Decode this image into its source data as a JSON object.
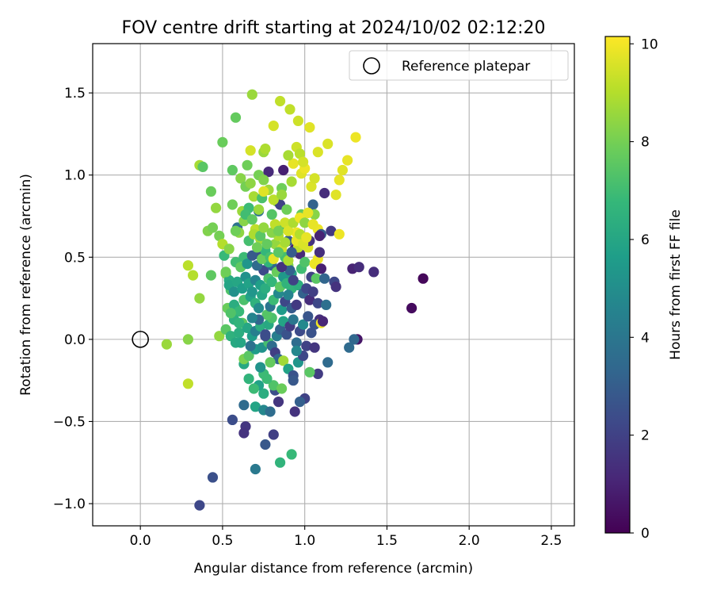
{
  "chart_data": {
    "type": "scatter",
    "title": "FOV centre drift starting at 2024/10/02 02:12:20",
    "xlabel": "Angular distance from reference (arcmin)",
    "ylabel": "Rotation from reference (arcmin)",
    "xlim": [
      -0.29,
      2.64
    ],
    "ylim": [
      -1.135,
      1.8
    ],
    "x_ticks": [
      0.0,
      0.5,
      1.0,
      1.5,
      2.0,
      2.5
    ],
    "x_tick_labels": [
      "0.0",
      "0.5",
      "1.0",
      "1.5",
      "2.0",
      "2.5"
    ],
    "y_ticks": [
      -1.0,
      -0.5,
      0.0,
      0.5,
      1.0,
      1.5
    ],
    "y_tick_labels": [
      "−1.0",
      "−0.5",
      "0.0",
      "0.5",
      "1.0",
      "1.5"
    ],
    "grid": true,
    "legend_position": "top-right",
    "legend": [
      {
        "label": "Reference platepar",
        "marker": "open-circle",
        "x": 0.0,
        "y": 0.0
      }
    ],
    "colorbar": {
      "label": "Hours from first FF file",
      "range": [
        0,
        10.15
      ],
      "ticks": [
        0,
        2,
        4,
        6,
        8,
        10
      ],
      "tick_labels": [
        "0",
        "2",
        "4",
        "6",
        "8",
        "10"
      ],
      "colormap": "viridis"
    },
    "colormap_stops": [
      "#440154",
      "#482878",
      "#3e4989",
      "#31688e",
      "#26828e",
      "#1f9e89",
      "#35b779",
      "#6ece58",
      "#b5de2b",
      "#fde725"
    ],
    "points": [
      [
        0.16,
        -0.03,
        8.6
      ],
      [
        0.29,
        -0.27,
        9.2
      ],
      [
        0.29,
        0.0,
        8.3
      ],
      [
        0.29,
        0.45,
        9.1
      ],
      [
        0.32,
        0.39,
        9.0
      ],
      [
        0.36,
        0.25,
        8.5
      ],
      [
        0.36,
        1.06,
        8.8
      ],
      [
        0.38,
        1.05,
        7.5
      ],
      [
        0.41,
        0.66,
        8.2
      ],
      [
        0.43,
        0.9,
        7.8
      ],
      [
        0.43,
        0.39,
        7.6
      ],
      [
        0.44,
        0.68,
        8.0
      ],
      [
        0.46,
        0.8,
        8.5
      ],
      [
        0.48,
        0.63,
        8.0
      ],
      [
        0.5,
        0.58,
        9.0
      ],
      [
        0.51,
        0.51,
        6.8
      ],
      [
        0.5,
        1.2,
        7.8
      ],
      [
        0.52,
        0.4,
        8.2
      ],
      [
        0.54,
        0.36,
        6.2
      ],
      [
        0.55,
        0.3,
        7.3
      ],
      [
        0.56,
        0.82,
        7.9
      ],
      [
        0.56,
        1.03,
        7.6
      ],
      [
        0.58,
        1.35,
        7.7
      ],
      [
        0.58,
        0.19,
        7.2
      ],
      [
        0.59,
        0.68,
        3.8
      ],
      [
        0.6,
        0.65,
        8.4
      ],
      [
        0.62,
        0.78,
        8.6
      ],
      [
        0.63,
        0.72,
        8.3
      ],
      [
        0.65,
        1.06,
        7.9
      ],
      [
        0.66,
        0.8,
        6.9
      ],
      [
        0.67,
        1.15,
        9.5
      ],
      [
        0.68,
        1.49,
        8.6
      ],
      [
        0.69,
        0.87,
        8.8
      ],
      [
        0.7,
        0.67,
        9.2
      ],
      [
        0.71,
        0.52,
        2.5
      ],
      [
        0.72,
        0.78,
        3.8
      ],
      [
        0.72,
        1.0,
        8.0
      ],
      [
        0.73,
        0.61,
        8.7
      ],
      [
        0.75,
        1.14,
        8.6
      ],
      [
        0.76,
        1.16,
        8.9
      ],
      [
        0.78,
        1.02,
        1.2
      ],
      [
        0.8,
        0.76,
        7.4
      ],
      [
        0.81,
        1.3,
        9.5
      ],
      [
        0.83,
        0.84,
        8.2
      ],
      [
        0.85,
        1.45,
        9.2
      ],
      [
        0.85,
        0.82,
        2.0
      ],
      [
        0.86,
        0.92,
        7.9
      ],
      [
        0.87,
        1.03,
        0.9
      ],
      [
        0.88,
        0.69,
        6.5
      ],
      [
        0.9,
        0.6,
        2.9
      ],
      [
        0.91,
        1.4,
        9.2
      ],
      [
        0.92,
        0.96,
        8.8
      ],
      [
        0.93,
        1.07,
        9.8
      ],
      [
        0.95,
        1.17,
        9.4
      ],
      [
        0.96,
        1.33,
        9.4
      ],
      [
        0.98,
        1.01,
        9.7
      ],
      [
        0.98,
        0.76,
        7.7
      ],
      [
        1.0,
        1.04,
        9.9
      ],
      [
        1.03,
        1.29,
        9.7
      ],
      [
        1.04,
        0.93,
        9.6
      ],
      [
        1.05,
        0.82,
        3.2
      ],
      [
        1.06,
        0.98,
        9.5
      ],
      [
        1.08,
        0.67,
        9.9
      ],
      [
        1.08,
        1.14,
        9.6
      ],
      [
        1.1,
        0.64,
        2.9
      ],
      [
        1.12,
        0.89,
        1.3
      ],
      [
        1.14,
        1.19,
        9.6
      ],
      [
        1.16,
        0.66,
        1.7
      ],
      [
        1.19,
        0.88,
        9.7
      ],
      [
        1.21,
        0.64,
        9.9
      ],
      [
        1.21,
        0.97,
        9.8
      ],
      [
        1.23,
        1.03,
        9.7
      ],
      [
        1.26,
        1.09,
        9.8
      ],
      [
        1.31,
        1.23,
        9.9
      ],
      [
        1.06,
        0.76,
        8.3
      ],
      [
        0.75,
        0.42,
        2.3
      ],
      [
        0.8,
        0.45,
        3.3
      ],
      [
        0.78,
        0.47,
        6.6
      ],
      [
        0.82,
        0.58,
        8.5
      ],
      [
        0.84,
        0.63,
        8.9
      ],
      [
        0.86,
        0.55,
        9.4
      ],
      [
        0.88,
        0.5,
        7.1
      ],
      [
        0.9,
        0.45,
        8.1
      ],
      [
        0.92,
        0.4,
        5.9
      ],
      [
        0.94,
        0.55,
        0.9
      ],
      [
        0.95,
        0.65,
        9.9
      ],
      [
        0.97,
        0.52,
        1.2
      ],
      [
        0.98,
        0.43,
        7.0
      ],
      [
        1.0,
        0.47,
        7.3
      ],
      [
        1.02,
        0.56,
        9.6
      ],
      [
        1.03,
        0.6,
        1.5
      ],
      [
        1.04,
        0.38,
        2.0
      ],
      [
        1.06,
        0.46,
        9.9
      ],
      [
        1.07,
        0.37,
        7.5
      ],
      [
        1.08,
        0.49,
        9.9
      ],
      [
        1.09,
        0.63,
        1.0
      ],
      [
        1.1,
        0.43,
        0.9
      ],
      [
        1.12,
        0.37,
        3.3
      ],
      [
        1.09,
        0.53,
        1.4
      ],
      [
        0.96,
        0.56,
        9.2
      ],
      [
        1.18,
        0.35,
        2.2
      ],
      [
        1.19,
        0.32,
        1.5
      ],
      [
        1.29,
        0.43,
        1.0
      ],
      [
        1.33,
        0.44,
        1.3
      ],
      [
        1.42,
        0.41,
        1.3
      ],
      [
        1.72,
        0.37,
        0.2
      ],
      [
        1.65,
        0.19,
        0.3
      ],
      [
        0.88,
        0.34,
        7.7
      ],
      [
        0.92,
        0.31,
        6.6
      ],
      [
        0.96,
        0.33,
        6.4
      ],
      [
        0.99,
        0.28,
        3.2
      ],
      [
        1.01,
        0.31,
        2.2
      ],
      [
        1.03,
        0.24,
        1.3
      ],
      [
        1.05,
        0.29,
        1.9
      ],
      [
        1.08,
        0.22,
        2.2
      ],
      [
        1.13,
        0.21,
        3.7
      ],
      [
        1.09,
        0.12,
        1.4
      ],
      [
        1.06,
        0.09,
        2.6
      ],
      [
        1.1,
        0.1,
        9.9
      ],
      [
        1.11,
        0.11,
        1.1
      ],
      [
        1.32,
        0.0,
        0.6
      ],
      [
        1.3,
        0.0,
        3.4
      ],
      [
        1.27,
        -0.05,
        3.5
      ],
      [
        1.14,
        -0.14,
        3.5
      ],
      [
        1.08,
        -0.21,
        1.8
      ],
      [
        1.03,
        -0.2,
        7.5
      ],
      [
        1.0,
        -0.36,
        2.0
      ],
      [
        0.97,
        -0.38,
        3.1
      ],
      [
        0.94,
        -0.44,
        1.5
      ],
      [
        0.92,
        -0.7,
        6.8
      ],
      [
        0.85,
        -0.75,
        6.6
      ],
      [
        0.81,
        -0.58,
        1.9
      ],
      [
        0.76,
        -0.64,
        2.8
      ],
      [
        0.7,
        -0.79,
        4.1
      ],
      [
        0.64,
        -0.53,
        1.6
      ],
      [
        0.63,
        -0.57,
        1.5
      ],
      [
        0.56,
        -0.49,
        2.4
      ],
      [
        0.44,
        -0.84,
        2.5
      ],
      [
        0.36,
        -1.01,
        2.2
      ],
      [
        0.63,
        -0.4,
        3.5
      ],
      [
        0.7,
        -0.41,
        5.9
      ],
      [
        0.75,
        -0.43,
        4.7
      ],
      [
        0.79,
        -0.44,
        3.6
      ],
      [
        0.84,
        -0.38,
        1.6
      ],
      [
        0.82,
        -0.31,
        2.4
      ],
      [
        0.81,
        -0.28,
        7.3
      ],
      [
        0.77,
        -0.24,
        6.9
      ],
      [
        0.75,
        -0.33,
        6.3
      ],
      [
        0.75,
        -0.21,
        6.9
      ],
      [
        0.72,
        -0.28,
        5.8
      ],
      [
        0.69,
        -0.3,
        6.9
      ],
      [
        0.66,
        -0.24,
        6.6
      ],
      [
        0.63,
        -0.15,
        6.1
      ],
      [
        0.63,
        -0.12,
        8.1
      ],
      [
        0.66,
        -0.1,
        7.5
      ],
      [
        0.7,
        -0.06,
        5.6
      ],
      [
        0.74,
        -0.05,
        5.2
      ],
      [
        0.78,
        -0.02,
        7.1
      ],
      [
        0.8,
        -0.04,
        3.6
      ],
      [
        0.82,
        -0.08,
        1.9
      ],
      [
        0.84,
        -0.12,
        3.3
      ],
      [
        0.87,
        -0.13,
        8.7
      ],
      [
        0.9,
        -0.18,
        5.8
      ],
      [
        0.93,
        -0.22,
        2.6
      ],
      [
        0.96,
        -0.14,
        5.3
      ],
      [
        0.99,
        -0.1,
        2.2
      ],
      [
        1.01,
        -0.04,
        2.0
      ],
      [
        1.04,
        0.04,
        2.6
      ],
      [
        1.06,
        -0.05,
        1.6
      ],
      [
        0.48,
        0.02,
        8.5
      ],
      [
        0.52,
        0.06,
        7.5
      ],
      [
        0.55,
        0.02,
        6.5
      ],
      [
        0.58,
        -0.02,
        6.1
      ],
      [
        0.6,
        0.04,
        6.3
      ],
      [
        0.62,
        0.1,
        7.6
      ],
      [
        0.65,
        0.07,
        6.0
      ],
      [
        0.68,
        0.02,
        5.6
      ],
      [
        0.7,
        0.05,
        4.4
      ],
      [
        0.73,
        0.08,
        6.3
      ],
      [
        0.76,
        0.03,
        2.4
      ],
      [
        0.78,
        0.09,
        6.1
      ],
      [
        0.8,
        0.13,
        7.2
      ],
      [
        0.83,
        0.02,
        4.3
      ],
      [
        0.85,
        0.06,
        3.1
      ],
      [
        0.87,
        0.11,
        5.9
      ],
      [
        0.89,
        0.03,
        2.6
      ],
      [
        0.91,
        0.08,
        1.8
      ],
      [
        0.93,
        0.12,
        4.0
      ],
      [
        0.95,
        -0.02,
        3.6
      ],
      [
        0.97,
        0.05,
        2.3
      ],
      [
        0.99,
        0.09,
        4.8
      ],
      [
        1.02,
        0.14,
        2.7
      ],
      [
        0.53,
        0.19,
        7.8
      ],
      [
        0.57,
        0.21,
        6.3
      ],
      [
        0.6,
        0.17,
        6.8
      ],
      [
        0.63,
        0.24,
        7.2
      ],
      [
        0.67,
        0.26,
        5.8
      ],
      [
        0.7,
        0.22,
        6.5
      ],
      [
        0.72,
        0.19,
        4.9
      ],
      [
        0.74,
        0.27,
        6.0
      ],
      [
        0.77,
        0.15,
        7.4
      ],
      [
        0.79,
        0.2,
        3.9
      ],
      [
        0.81,
        0.24,
        6.9
      ],
      [
        0.84,
        0.28,
        4.8
      ],
      [
        0.86,
        0.18,
        5.5
      ],
      [
        0.88,
        0.23,
        2.2
      ],
      [
        0.9,
        0.27,
        4.5
      ],
      [
        0.92,
        0.19,
        2.9
      ],
      [
        0.95,
        0.21,
        1.7
      ],
      [
        0.54,
        0.33,
        5.9
      ],
      [
        0.57,
        0.29,
        5.1
      ],
      [
        0.59,
        0.35,
        6.0
      ],
      [
        0.62,
        0.31,
        5.6
      ],
      [
        0.64,
        0.38,
        5.1
      ],
      [
        0.66,
        0.34,
        5.8
      ],
      [
        0.68,
        0.29,
        5.3
      ],
      [
        0.7,
        0.36,
        4.6
      ],
      [
        0.73,
        0.33,
        5.7
      ],
      [
        0.76,
        0.31,
        6.3
      ],
      [
        0.78,
        0.37,
        7.2
      ],
      [
        0.8,
        0.35,
        6.7
      ],
      [
        0.83,
        0.41,
        7.8
      ],
      [
        0.85,
        0.32,
        7.6
      ],
      [
        0.87,
        0.38,
        5.4
      ],
      [
        0.89,
        0.34,
        6.6
      ],
      [
        0.91,
        0.42,
        3.2
      ],
      [
        0.93,
        0.36,
        2.0
      ],
      [
        0.58,
        0.47,
        7.0
      ],
      [
        0.61,
        0.44,
        7.6
      ],
      [
        0.63,
        0.5,
        6.9
      ],
      [
        0.65,
        0.46,
        5.3
      ],
      [
        0.68,
        0.51,
        2.9
      ],
      [
        0.71,
        0.45,
        3.5
      ],
      [
        0.74,
        0.49,
        7.8
      ],
      [
        0.76,
        0.54,
        6.7
      ],
      [
        0.79,
        0.5,
        7.1
      ],
      [
        0.81,
        0.49,
        9.8
      ],
      [
        0.84,
        0.53,
        7.5
      ],
      [
        0.86,
        0.44,
        1.5
      ],
      [
        0.88,
        0.59,
        8.8
      ],
      [
        0.9,
        0.48,
        8.9
      ],
      [
        0.92,
        0.53,
        2.9
      ],
      [
        0.95,
        0.6,
        9.8
      ],
      [
        0.97,
        0.64,
        9.0
      ],
      [
        0.99,
        0.58,
        9.6
      ],
      [
        1.01,
        0.62,
        9.8
      ],
      [
        0.66,
        0.6,
        7.1
      ],
      [
        0.69,
        0.64,
        8.9
      ],
      [
        0.71,
        0.56,
        7.9
      ],
      [
        0.73,
        0.63,
        7.5
      ],
      [
        0.75,
        0.68,
        8.5
      ],
      [
        0.77,
        0.58,
        7.7
      ],
      [
        0.8,
        0.65,
        8.3
      ],
      [
        0.82,
        0.7,
        9.2
      ],
      [
        0.84,
        0.66,
        8.0
      ],
      [
        0.88,
        0.71,
        9.4
      ],
      [
        0.9,
        0.66,
        9.6
      ],
      [
        0.93,
        0.71,
        8.9
      ],
      [
        0.97,
        0.74,
        9.9
      ],
      [
        1.0,
        0.71,
        8.4
      ],
      [
        1.02,
        0.77,
        9.8
      ],
      [
        1.05,
        0.7,
        9.8
      ],
      [
        0.64,
        0.76,
        7.0
      ],
      [
        0.68,
        0.73,
        7.6
      ],
      [
        0.72,
        0.79,
        8.6
      ],
      [
        0.74,
        0.86,
        7.2
      ],
      [
        0.78,
        0.91,
        8.7
      ],
      [
        0.81,
        0.85,
        9.1
      ],
      [
        0.86,
        0.88,
        8.6
      ],
      [
        0.89,
        0.79,
        7.9
      ],
      [
        0.61,
        0.98,
        8.3
      ],
      [
        0.64,
        0.93,
        8.0
      ],
      [
        0.67,
        0.95,
        8.4
      ],
      [
        0.75,
        0.97,
        8.2
      ],
      [
        0.75,
        0.9,
        9.7
      ],
      [
        0.9,
        1.12,
        8.8
      ],
      [
        0.97,
        1.13,
        9.1
      ],
      [
        0.99,
        1.08,
        9.5
      ],
      [
        0.58,
        0.66,
        7.9
      ],
      [
        0.54,
        0.55,
        8.3
      ],
      [
        0.52,
        0.41,
        7.9
      ],
      [
        0.57,
        0.12,
        6.4
      ],
      [
        0.6,
        0.1,
        6.6
      ],
      [
        0.55,
        0.16,
        7.3
      ],
      [
        0.61,
        -0.02,
        6.0
      ],
      [
        0.67,
        -0.04,
        3.8
      ],
      [
        0.72,
        0.12,
        3.3
      ],
      [
        0.86,
        -0.3,
        7.8
      ],
      [
        0.93,
        -0.25,
        2.8
      ],
      [
        0.73,
        -0.17,
        5.2
      ],
      [
        0.79,
        -0.14,
        7.7
      ],
      [
        0.95,
        -0.07,
        4.7
      ],
      [
        0.76,
        0.02,
        2.4
      ],
      [
        0.68,
        0.13,
        4.6
      ]
    ]
  }
}
